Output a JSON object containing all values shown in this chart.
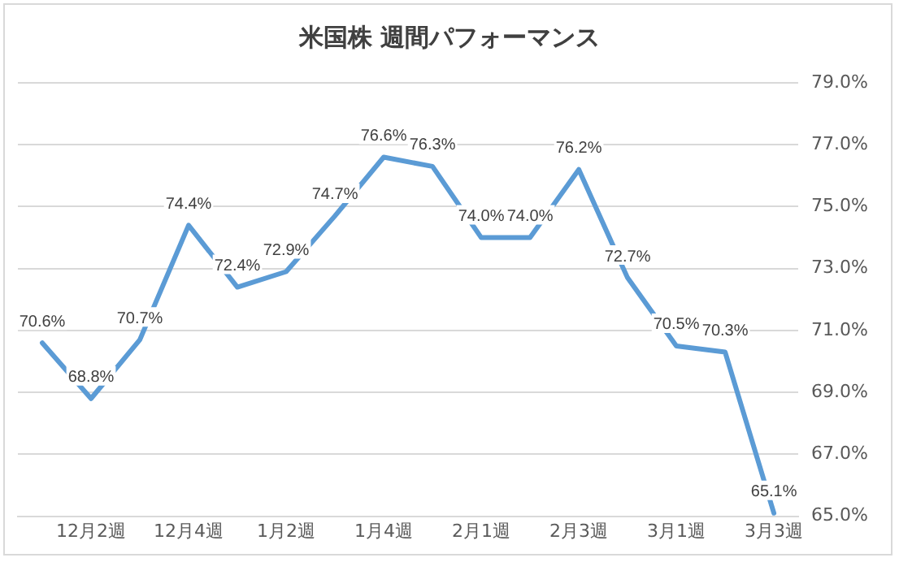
{
  "chart_data": {
    "type": "line",
    "title": "米国株 週間パフォーマンス",
    "categories": [
      null,
      "12月2週",
      null,
      "12月4週",
      null,
      "1月2週",
      null,
      "1月4週",
      null,
      "2月1週",
      null,
      "2月3週",
      null,
      "3月1週",
      null,
      "3月3週"
    ],
    "series": [
      {
        "color": "#5b9bd5",
        "values": [
          70.6,
          68.8,
          70.7,
          74.4,
          72.4,
          72.9,
          74.7,
          76.6,
          76.3,
          74.0,
          74.0,
          76.2,
          72.7,
          70.5,
          70.3,
          65.1
        ],
        "value_labels": [
          "70.6%",
          "68.8%",
          "70.7%",
          "74.4%",
          "72.4%",
          "72.9%",
          "74.7%",
          "76.6%",
          "76.3%",
          "74.0%",
          "74.0%",
          "76.2%",
          "72.7%",
          "70.5%",
          "70.3%",
          "65.1%"
        ]
      }
    ],
    "ylim": [
      65,
      79
    ],
    "yticks": [
      {
        "value": 65,
        "label": "65.0%"
      },
      {
        "value": 67,
        "label": "67.0%"
      },
      {
        "value": 69,
        "label": "69.0%"
      },
      {
        "value": 71,
        "label": "71.0%"
      },
      {
        "value": 73,
        "label": "73.0%"
      },
      {
        "value": 75,
        "label": "75.0%"
      },
      {
        "value": 77,
        "label": "77.0%"
      },
      {
        "value": 79,
        "label": "79.0%"
      }
    ],
    "grid": "y",
    "legend": false,
    "marker": "none",
    "line_style": "solid"
  }
}
